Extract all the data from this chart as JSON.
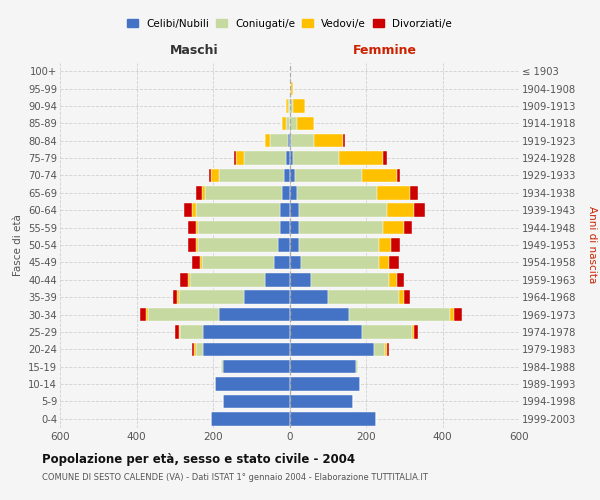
{
  "age_groups": [
    "0-4",
    "5-9",
    "10-14",
    "15-19",
    "20-24",
    "25-29",
    "30-34",
    "35-39",
    "40-44",
    "45-49",
    "50-54",
    "55-59",
    "60-64",
    "65-69",
    "70-74",
    "75-79",
    "80-84",
    "85-89",
    "90-94",
    "95-99",
    "100+"
  ],
  "birth_years": [
    "1999-2003",
    "1994-1998",
    "1989-1993",
    "1984-1988",
    "1979-1983",
    "1974-1978",
    "1969-1973",
    "1964-1968",
    "1959-1963",
    "1954-1958",
    "1949-1953",
    "1944-1948",
    "1939-1943",
    "1934-1938",
    "1929-1933",
    "1924-1928",
    "1919-1923",
    "1914-1918",
    "1909-1913",
    "1904-1908",
    "≤ 1903"
  ],
  "male": {
    "celibi": [
      205,
      175,
      195,
      175,
      225,
      225,
      185,
      120,
      65,
      40,
      30,
      25,
      25,
      20,
      15,
      10,
      5,
      0,
      0,
      0,
      0
    ],
    "coniugati": [
      0,
      0,
      0,
      5,
      20,
      60,
      185,
      170,
      195,
      190,
      210,
      215,
      220,
      200,
      170,
      110,
      45,
      10,
      5,
      0,
      0
    ],
    "vedovi": [
      0,
      0,
      0,
      0,
      5,
      5,
      5,
      5,
      5,
      5,
      5,
      5,
      10,
      10,
      20,
      20,
      15,
      10,
      5,
      0,
      0
    ],
    "divorziati": [
      0,
      0,
      0,
      0,
      5,
      10,
      15,
      10,
      20,
      20,
      20,
      20,
      20,
      15,
      5,
      5,
      0,
      0,
      0,
      0,
      0
    ]
  },
  "female": {
    "nubili": [
      225,
      165,
      185,
      175,
      220,
      190,
      155,
      100,
      55,
      30,
      25,
      25,
      25,
      20,
      15,
      10,
      5,
      0,
      0,
      0,
      0
    ],
    "coniugate": [
      0,
      0,
      0,
      5,
      30,
      130,
      265,
      185,
      205,
      205,
      210,
      220,
      230,
      210,
      175,
      120,
      60,
      20,
      10,
      5,
      0
    ],
    "vedove": [
      0,
      0,
      0,
      0,
      5,
      5,
      10,
      15,
      20,
      25,
      30,
      55,
      70,
      85,
      90,
      115,
      75,
      45,
      30,
      5,
      0
    ],
    "divorziate": [
      0,
      0,
      0,
      0,
      5,
      10,
      20,
      15,
      20,
      25,
      25,
      20,
      30,
      20,
      10,
      10,
      5,
      0,
      0,
      0,
      0
    ]
  },
  "colors": {
    "celibi": "#4472c4",
    "coniugati": "#c5d9a0",
    "vedovi": "#ffc000",
    "divorziati": "#cc0000"
  },
  "xlim": 600,
  "title": "Popolazione per età, sesso e stato civile - 2004",
  "subtitle": "COMUNE DI SESTO CALENDE (VA) - Dati ISTAT 1° gennaio 2004 - Elaborazione TUTTITALIA.IT",
  "ylabel_left": "Fasce di età",
  "ylabel_right": "Anni di nascita",
  "xlabel_left": "Maschi",
  "xlabel_right": "Femmine",
  "legend_labels": [
    "Celibi/Nubili",
    "Coniugati/e",
    "Vedovi/e",
    "Divorziati/e"
  ],
  "background_color": "#f5f5f5",
  "grid_color": "#cccccc"
}
